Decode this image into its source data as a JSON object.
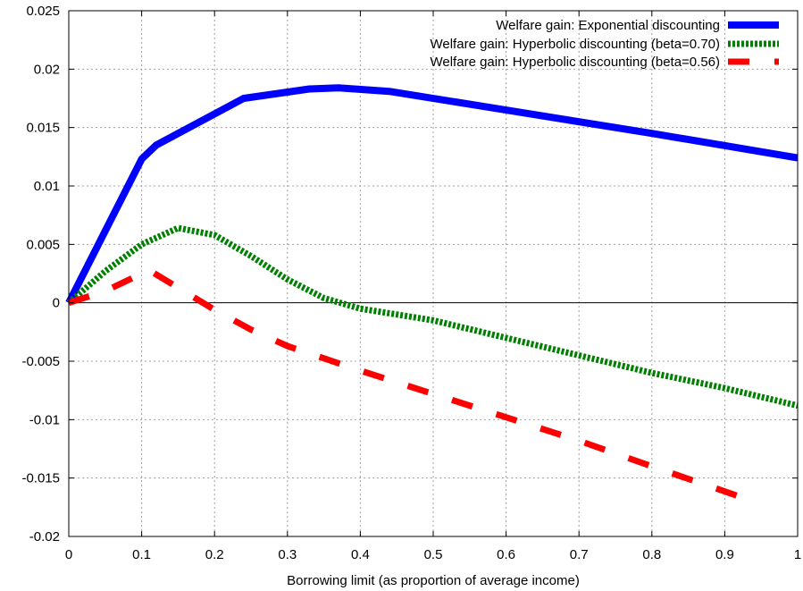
{
  "chart_data": {
    "type": "line",
    "title": "",
    "xlabel": "Borrowing limit (as proportion of average income)",
    "ylabel": "",
    "xlim": [
      0,
      1
    ],
    "ylim": [
      -0.02,
      0.025
    ],
    "x_ticks": [
      0,
      0.1,
      0.2,
      0.3,
      0.4,
      0.5,
      0.6,
      0.7,
      0.8,
      0.9,
      1
    ],
    "x_tick_labels": [
      "0",
      "0.1",
      "0.2",
      "0.3",
      "0.4",
      "0.5",
      "0.6",
      "0.7",
      "0.8",
      "0.9",
      "1"
    ],
    "y_ticks": [
      -0.02,
      -0.015,
      -0.01,
      -0.005,
      0,
      0.005,
      0.01,
      0.015,
      0.02,
      0.025
    ],
    "y_tick_labels": [
      "-0.02",
      "-0.015",
      "-0.01",
      "-0.005",
      "0",
      "0.005",
      "0.01",
      "0.015",
      "0.02",
      "0.025"
    ],
    "grid": true,
    "legend_position": "top-right",
    "series": [
      {
        "name": "Welfare gain: Exponential discounting",
        "color": "#0000ff",
        "style": "solid",
        "x": [
          0,
          0.1,
          0.12,
          0.24,
          0.33,
          0.37,
          0.44,
          0.6,
          0.8,
          1.0
        ],
        "y": [
          0,
          0.0123,
          0.0135,
          0.0175,
          0.0183,
          0.0184,
          0.0181,
          0.0165,
          0.0145,
          0.0124
        ]
      },
      {
        "name": "Welfare gain: Hyperbolic discounting (beta=0.70)",
        "color": "#008000",
        "style": "dotted",
        "x": [
          0,
          0.05,
          0.1,
          0.15,
          0.2,
          0.25,
          0.3,
          0.35,
          0.4,
          0.5,
          0.6,
          0.7,
          0.8,
          0.9,
          1.0
        ],
        "y": [
          0,
          0.0027,
          0.005,
          0.0064,
          0.0058,
          0.004,
          0.002,
          0.0004,
          -0.0005,
          -0.0015,
          -0.003,
          -0.0045,
          -0.006,
          -0.0073,
          -0.0088
        ]
      },
      {
        "name": "Welfare gain: Hyperbolic discounting (beta=0.56)",
        "color": "#ff0000",
        "style": "dashed",
        "x": [
          0,
          0.05,
          0.11,
          0.2,
          0.25,
          0.3,
          0.4,
          0.5,
          0.6,
          0.7,
          0.8,
          0.94
        ],
        "y": [
          0,
          0.001,
          0.0028,
          -0.0006,
          -0.0023,
          -0.0037,
          -0.0058,
          -0.0078,
          -0.0098,
          -0.0118,
          -0.014,
          -0.017
        ]
      }
    ]
  }
}
